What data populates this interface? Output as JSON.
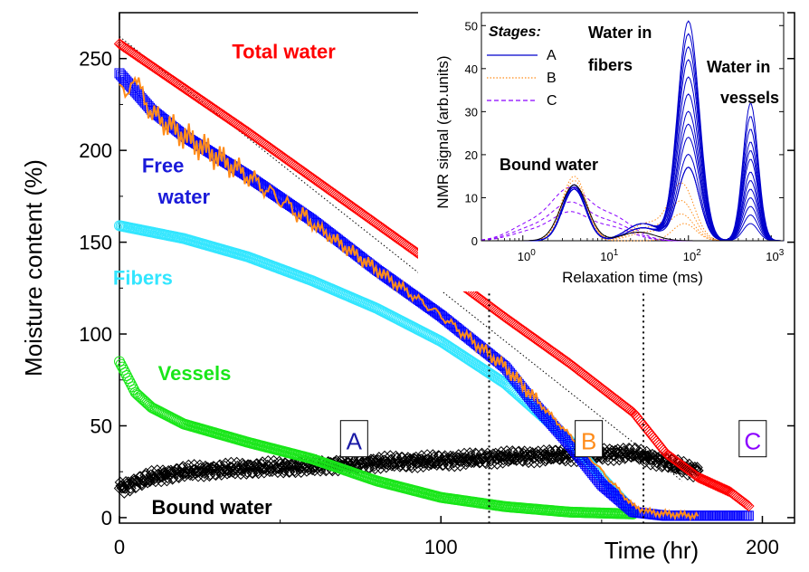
{
  "chart_data": [
    {
      "type": "scatter",
      "xlabel": "Time (hr)",
      "ylabel": "Moisture content (%)",
      "xlim": [
        0,
        210
      ],
      "ylim": [
        -3,
        275
      ],
      "x_ticks": [
        0,
        100,
        200
      ],
      "y_ticks": [
        0,
        50,
        100,
        150,
        200,
        250
      ],
      "grid": false,
      "series": [
        {
          "name": "Total water",
          "color": "#ff0000",
          "marker": "diamond-open",
          "x": [
            0,
            20,
            40,
            60,
            80,
            100,
            120,
            140,
            160,
            170,
            180,
            190,
            196
          ],
          "y": [
            258,
            234,
            210,
            185,
            160,
            135,
            109,
            84,
            57,
            35,
            22,
            14,
            6
          ]
        },
        {
          "name": "Free water",
          "color": "#0000ff",
          "marker": "square-open",
          "x": [
            0,
            10,
            20,
            40,
            60,
            80,
            100,
            120,
            130,
            140,
            150,
            160,
            170,
            180,
            196
          ],
          "y": [
            242,
            222,
            208,
            186,
            162,
            135,
            110,
            82,
            60,
            40,
            18,
            3,
            1,
            1,
            1
          ]
        },
        {
          "name": "Free water (fit)",
          "color": "#ff8c1a",
          "marker": "line",
          "x": [
            0,
            2,
            4,
            10,
            20,
            40,
            60,
            80,
            100,
            120,
            140,
            160,
            165,
            170,
            180
          ],
          "y": [
            236,
            226,
            242,
            220,
            208,
            186,
            160,
            135,
            110,
            82,
            45,
            6,
            3,
            2,
            1
          ]
        },
        {
          "name": "Fibers",
          "color": "#33e6ff",
          "marker": "circle-open",
          "x": [
            0,
            20,
            40,
            60,
            80,
            100,
            120,
            140,
            150,
            160
          ],
          "y": [
            159,
            152,
            142,
            129,
            114,
            96,
            73,
            42,
            22,
            3
          ]
        },
        {
          "name": "Vessels",
          "color": "#19e619",
          "marker": "circle-open",
          "x": [
            0,
            5,
            10,
            20,
            40,
            60,
            80,
            100,
            120,
            140,
            160
          ],
          "y": [
            85,
            68,
            60,
            51,
            41,
            32,
            20,
            11,
            6,
            3,
            2
          ]
        },
        {
          "name": "Bound water",
          "color": "#000000",
          "marker": "diamond-open",
          "x": [
            0,
            10,
            20,
            40,
            60,
            80,
            100,
            120,
            140,
            160,
            170,
            180
          ],
          "y": [
            16,
            22,
            25,
            27,
            28,
            30,
            31,
            33,
            34,
            35,
            30,
            25
          ]
        }
      ],
      "reference_line": {
        "style": "dotted",
        "x": [
          0,
          175
        ],
        "y": [
          262,
          20
        ]
      },
      "stage_boundaries": [
        {
          "x": 115
        },
        {
          "x": 163
        }
      ],
      "stages": [
        {
          "label": "A",
          "color": "#1a1aa6",
          "x": 73,
          "y": 42
        },
        {
          "label": "B",
          "color": "#ff8c1a",
          "x": 146,
          "y": 42
        },
        {
          "label": "C",
          "color": "#8b00ff",
          "x": 197,
          "y": 42
        }
      ],
      "series_labels": [
        {
          "text": "Total water",
          "color": "#ff0000",
          "x": 35,
          "y": 250
        },
        {
          "text": "Free",
          "color": "#1a1ad9",
          "x": 7,
          "y": 188
        },
        {
          "text": "water",
          "color": "#1a1ad9",
          "x": 12,
          "y": 171
        },
        {
          "text": "Fibers",
          "color": "#33e6ff",
          "x": -2,
          "y": 127
        },
        {
          "text": "Vessels",
          "color": "#19e619",
          "x": 12,
          "y": 75
        },
        {
          "text": "Bound water",
          "color": "#000000",
          "x": 10,
          "y": 2
        }
      ]
    },
    {
      "type": "line",
      "xlabel": "Relaxation time (ms)",
      "ylabel": "NMR signal (arb.units)",
      "x_scale": "log",
      "xlim_exponent": [
        -0.5,
        3.15
      ],
      "ylim": [
        0,
        53
      ],
      "x_ticks": [
        "10^0",
        "10^1",
        "10^2",
        "10^3"
      ],
      "y_ticks": [
        0,
        10,
        20,
        30,
        40,
        50
      ],
      "legend_title": "Stages:",
      "legend": [
        {
          "label": "A",
          "color": "#0000cc",
          "style": "solid"
        },
        {
          "label": "B",
          "color": "#ff8c1a",
          "style": "dotted"
        },
        {
          "label": "C",
          "color": "#8b00ff",
          "style": "dashed"
        }
      ],
      "annotations": [
        "Water in",
        "fibers",
        "Water in",
        "vessels",
        "Bound water"
      ],
      "peaks": {
        "bound_log": 0.62,
        "fibers_log": 2.0,
        "vessels_log": 2.75
      },
      "curves_A": {
        "bound": [
          13,
          12,
          12,
          13,
          13,
          12
        ],
        "fibers": [
          51,
          48,
          45,
          42,
          38,
          34,
          30,
          27,
          24,
          20,
          17
        ],
        "vessels": [
          32,
          29,
          26,
          23,
          21,
          19,
          16,
          14,
          12,
          10,
          8,
          6,
          4
        ]
      },
      "curves_B": {
        "bound": [
          15,
          14,
          13
        ],
        "fibers": [
          13,
          9,
          6,
          4
        ]
      },
      "curves_C": {
        "bound": [
          11,
          8,
          6
        ]
      }
    }
  ]
}
